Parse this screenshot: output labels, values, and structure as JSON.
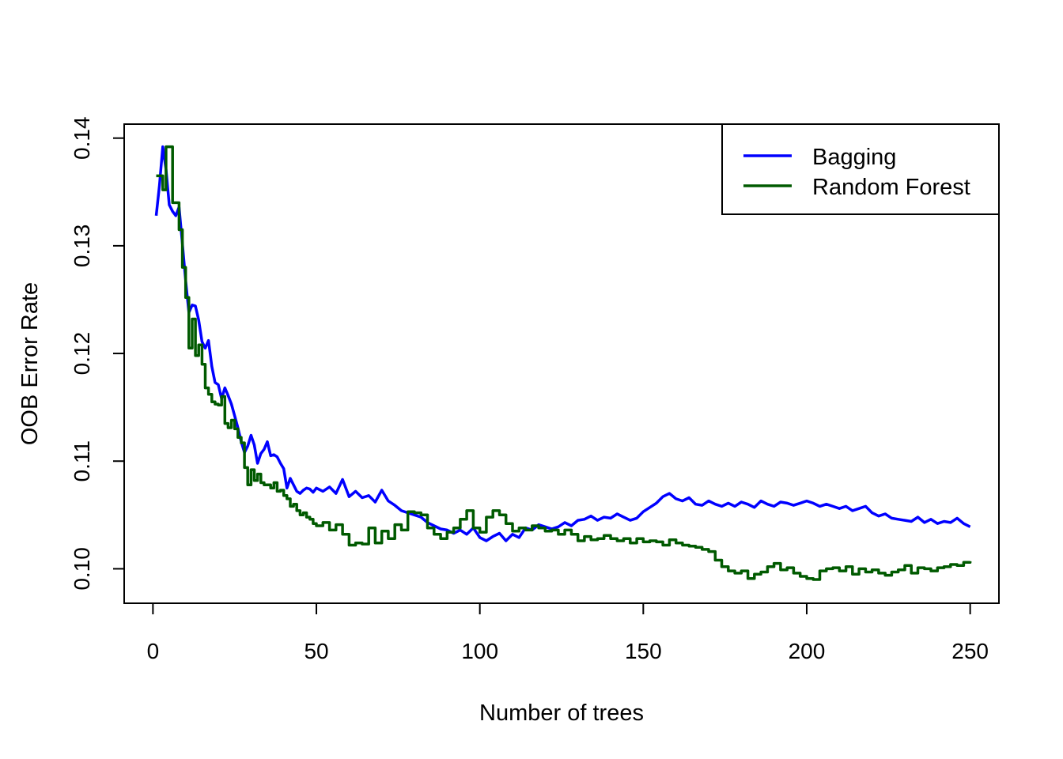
{
  "chart_data": {
    "type": "line",
    "xlabel": "Number of trees",
    "ylabel": "OOB Error Rate",
    "xlim": [
      -8.8,
      258.8
    ],
    "ylim": [
      0.0968,
      0.1413
    ],
    "xticks": [
      0,
      50,
      100,
      150,
      200,
      250
    ],
    "xtick_labels": [
      "0",
      "50",
      "100",
      "150",
      "200",
      "250"
    ],
    "yticks": [
      0.1,
      0.11,
      0.12,
      0.13,
      0.14
    ],
    "ytick_labels": [
      "0.10",
      "0.11",
      "0.12",
      "0.13",
      "0.14"
    ],
    "grid": false,
    "legend_position": "top-right",
    "series": [
      {
        "name": "Bagging",
        "color": "#0000FF",
        "style": "line",
        "x": [
          1,
          2,
          3,
          4,
          5,
          6,
          7,
          8,
          9,
          10,
          11,
          12,
          13,
          14,
          15,
          16,
          17,
          18,
          19,
          20,
          21,
          22,
          23,
          24,
          25,
          26,
          27,
          28,
          29,
          30,
          31,
          32,
          33,
          34,
          35,
          36,
          37,
          38,
          39,
          40,
          41,
          42,
          43,
          44,
          45,
          46,
          47,
          48,
          49,
          50,
          52,
          54,
          56,
          58,
          60,
          62,
          64,
          66,
          68,
          70,
          72,
          74,
          76,
          78,
          80,
          82,
          84,
          86,
          88,
          90,
          92,
          94,
          96,
          98,
          100,
          102,
          104,
          106,
          108,
          110,
          112,
          114,
          116,
          118,
          120,
          122,
          124,
          126,
          128,
          130,
          132,
          134,
          136,
          138,
          140,
          142,
          144,
          146,
          148,
          150,
          152,
          154,
          156,
          158,
          160,
          162,
          164,
          166,
          168,
          170,
          172,
          174,
          176,
          178,
          180,
          182,
          184,
          186,
          188,
          190,
          192,
          194,
          196,
          198,
          200,
          202,
          204,
          206,
          208,
          210,
          212,
          214,
          216,
          218,
          220,
          222,
          224,
          226,
          228,
          230,
          232,
          234,
          236,
          238,
          240,
          242,
          244,
          246,
          248,
          250
        ],
        "y": [
          0.1328,
          0.1356,
          0.1392,
          0.1371,
          0.1338,
          0.1332,
          0.1328,
          0.1336,
          0.1302,
          0.1268,
          0.1238,
          0.1245,
          0.1244,
          0.1231,
          0.1211,
          0.1205,
          0.1212,
          0.1188,
          0.1173,
          0.1171,
          0.1158,
          0.1168,
          0.1161,
          0.1153,
          0.1142,
          0.1131,
          0.1118,
          0.1108,
          0.1114,
          0.1124,
          0.1115,
          0.1098,
          0.1107,
          0.1111,
          0.1118,
          0.1105,
          0.1106,
          0.1104,
          0.1098,
          0.1093,
          0.1075,
          0.1084,
          0.1078,
          0.1072,
          0.107,
          0.1073,
          0.1075,
          0.1074,
          0.1071,
          0.1075,
          0.1072,
          0.1076,
          0.107,
          0.1083,
          0.1067,
          0.1072,
          0.1066,
          0.1068,
          0.1062,
          0.1073,
          0.1063,
          0.1059,
          0.1054,
          0.1052,
          0.105,
          0.1048,
          0.1043,
          0.104,
          0.1037,
          0.1036,
          0.1033,
          0.1036,
          0.1032,
          0.1038,
          0.1029,
          0.1026,
          0.103,
          0.1033,
          0.1026,
          0.1032,
          0.1029,
          0.1038,
          0.1036,
          0.1041,
          0.1039,
          0.1037,
          0.1039,
          0.1043,
          0.104,
          0.1045,
          0.1046,
          0.1049,
          0.1045,
          0.1048,
          0.1047,
          0.1051,
          0.1048,
          0.1045,
          0.1047,
          0.1053,
          0.1057,
          0.1061,
          0.1067,
          0.107,
          0.1065,
          0.1063,
          0.1066,
          0.106,
          0.1059,
          0.1063,
          0.106,
          0.1058,
          0.1061,
          0.1058,
          0.1062,
          0.106,
          0.1057,
          0.1063,
          0.106,
          0.1058,
          0.1062,
          0.1061,
          0.1059,
          0.1061,
          0.1063,
          0.1061,
          0.1058,
          0.106,
          0.1058,
          0.1056,
          0.1058,
          0.1054,
          0.1056,
          0.1058,
          0.1052,
          0.1049,
          0.1051,
          0.1047,
          0.1046,
          0.1045,
          0.1044,
          0.1048,
          0.1043,
          0.1046,
          0.1042,
          0.1044,
          0.1043,
          0.1047,
          0.1042,
          0.1039
        ]
      },
      {
        "name": "Random Forest",
        "color": "#005A00",
        "style": "step",
        "x": [
          1,
          2,
          3,
          4,
          5,
          6,
          7,
          8,
          9,
          10,
          11,
          12,
          13,
          14,
          15,
          16,
          17,
          18,
          19,
          20,
          21,
          22,
          23,
          24,
          25,
          26,
          27,
          28,
          29,
          30,
          31,
          32,
          33,
          34,
          35,
          36,
          37,
          38,
          39,
          40,
          41,
          42,
          43,
          44,
          45,
          46,
          47,
          48,
          49,
          50,
          52,
          54,
          56,
          58,
          60,
          62,
          64,
          66,
          68,
          70,
          72,
          74,
          76,
          78,
          80,
          82,
          84,
          86,
          88,
          90,
          92,
          94,
          96,
          98,
          100,
          102,
          104,
          106,
          108,
          110,
          112,
          114,
          116,
          118,
          120,
          122,
          124,
          126,
          128,
          130,
          132,
          134,
          136,
          138,
          140,
          142,
          144,
          146,
          148,
          150,
          152,
          154,
          156,
          158,
          160,
          162,
          164,
          166,
          168,
          170,
          172,
          174,
          176,
          178,
          180,
          182,
          184,
          186,
          188,
          190,
          192,
          194,
          196,
          198,
          200,
          202,
          204,
          206,
          208,
          210,
          212,
          214,
          216,
          218,
          220,
          222,
          224,
          226,
          228,
          230,
          232,
          234,
          236,
          238,
          240,
          242,
          244,
          246,
          248,
          250
        ],
        "y": [
          0.1365,
          0.1365,
          0.1352,
          0.1392,
          0.1392,
          0.134,
          0.134,
          0.1315,
          0.128,
          0.1252,
          0.1205,
          0.1232,
          0.1198,
          0.1208,
          0.119,
          0.1168,
          0.1162,
          0.1155,
          0.1153,
          0.1152,
          0.116,
          0.1135,
          0.1131,
          0.1138,
          0.113,
          0.1122,
          0.1117,
          0.1094,
          0.1078,
          0.1092,
          0.1082,
          0.1088,
          0.108,
          0.1078,
          0.1078,
          0.1075,
          0.108,
          0.1072,
          0.1073,
          0.1068,
          0.1065,
          0.1058,
          0.106,
          0.1054,
          0.105,
          0.1052,
          0.1048,
          0.1046,
          0.1042,
          0.104,
          0.1043,
          0.1036,
          0.1041,
          0.1032,
          0.1022,
          0.1024,
          0.1023,
          0.1038,
          0.1024,
          0.1035,
          0.1028,
          0.1041,
          0.1036,
          0.1053,
          0.1052,
          0.105,
          0.1038,
          0.1032,
          0.1028,
          0.1034,
          0.1038,
          0.1046,
          0.1054,
          0.1038,
          0.1034,
          0.1048,
          0.1054,
          0.105,
          0.1042,
          0.1035,
          0.1038,
          0.1036,
          0.104,
          0.1038,
          0.1035,
          0.1036,
          0.1032,
          0.1036,
          0.1032,
          0.1026,
          0.103,
          0.1027,
          0.1028,
          0.1031,
          0.1028,
          0.1026,
          0.1028,
          0.1024,
          0.1028,
          0.1025,
          0.1026,
          0.1025,
          0.1022,
          0.1027,
          0.1024,
          0.1022,
          0.1021,
          0.102,
          0.1018,
          0.1016,
          0.1008,
          0.1002,
          0.0998,
          0.0996,
          0.0998,
          0.0991,
          0.0995,
          0.0997,
          0.1002,
          0.1005,
          0.0999,
          0.1001,
          0.0996,
          0.0993,
          0.0991,
          0.099,
          0.0998,
          0.1,
          0.1001,
          0.0998,
          0.1002,
          0.0995,
          0.1,
          0.0997,
          0.0999,
          0.0996,
          0.0994,
          0.0997,
          0.0999,
          0.1003,
          0.0996,
          0.1001,
          0.1,
          0.0998,
          0.1001,
          0.1002,
          0.1004,
          0.1003,
          0.1006,
          0.1007
        ]
      }
    ]
  }
}
